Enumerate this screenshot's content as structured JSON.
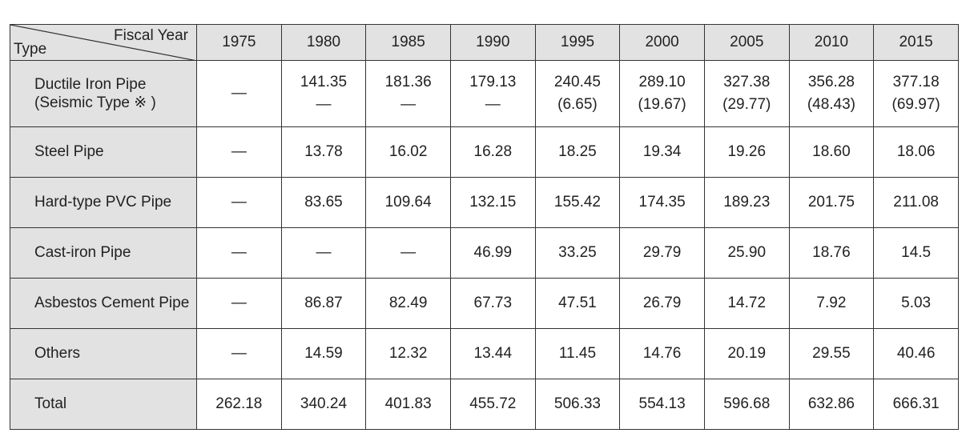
{
  "header": {
    "fiscal_year": "Fiscal Year",
    "type": "Type",
    "years": [
      "1975",
      "1980",
      "1985",
      "1990",
      "1995",
      "2000",
      "2005",
      "2010",
      "2015"
    ]
  },
  "rows": [
    {
      "label": "Ductile Iron Pipe",
      "sublabel": "(Seismic Type ※ )",
      "cells": [
        "—",
        "141.35",
        "181.36",
        "179.13",
        "240.45",
        "289.10",
        "327.38",
        "356.28",
        "377.18"
      ],
      "subcells": [
        null,
        "—",
        "—",
        "—",
        "(6.65)",
        "(19.67)",
        "(29.77)",
        "(48.43)",
        "(69.97)"
      ]
    },
    {
      "label": "Steel Pipe",
      "cells": [
        "—",
        "13.78",
        "16.02",
        "16.28",
        "18.25",
        "19.34",
        "19.26",
        "18.60",
        "18.06"
      ]
    },
    {
      "label": "Hard-type PVC Pipe",
      "cells": [
        "—",
        "83.65",
        "109.64",
        "132.15",
        "155.42",
        "174.35",
        "189.23",
        "201.75",
        "211.08"
      ]
    },
    {
      "label": "Cast-iron Pipe",
      "cells": [
        "—",
        "—",
        "—",
        "46.99",
        "33.25",
        "29.79",
        "25.90",
        "18.76",
        "14.5"
      ]
    },
    {
      "label": "Asbestos Cement Pipe",
      "cells": [
        "—",
        "86.87",
        "82.49",
        "67.73",
        "47.51",
        "26.79",
        "14.72",
        "7.92",
        "5.03"
      ]
    },
    {
      "label": "Others",
      "cells": [
        "—",
        "14.59",
        "12.32",
        "13.44",
        "11.45",
        "14.76",
        "20.19",
        "29.55",
        "40.46"
      ]
    },
    {
      "label": "Total",
      "cells": [
        "262.18",
        "340.24",
        "401.83",
        "455.72",
        "506.33",
        "554.13",
        "596.68",
        "632.86",
        "666.31"
      ]
    }
  ]
}
